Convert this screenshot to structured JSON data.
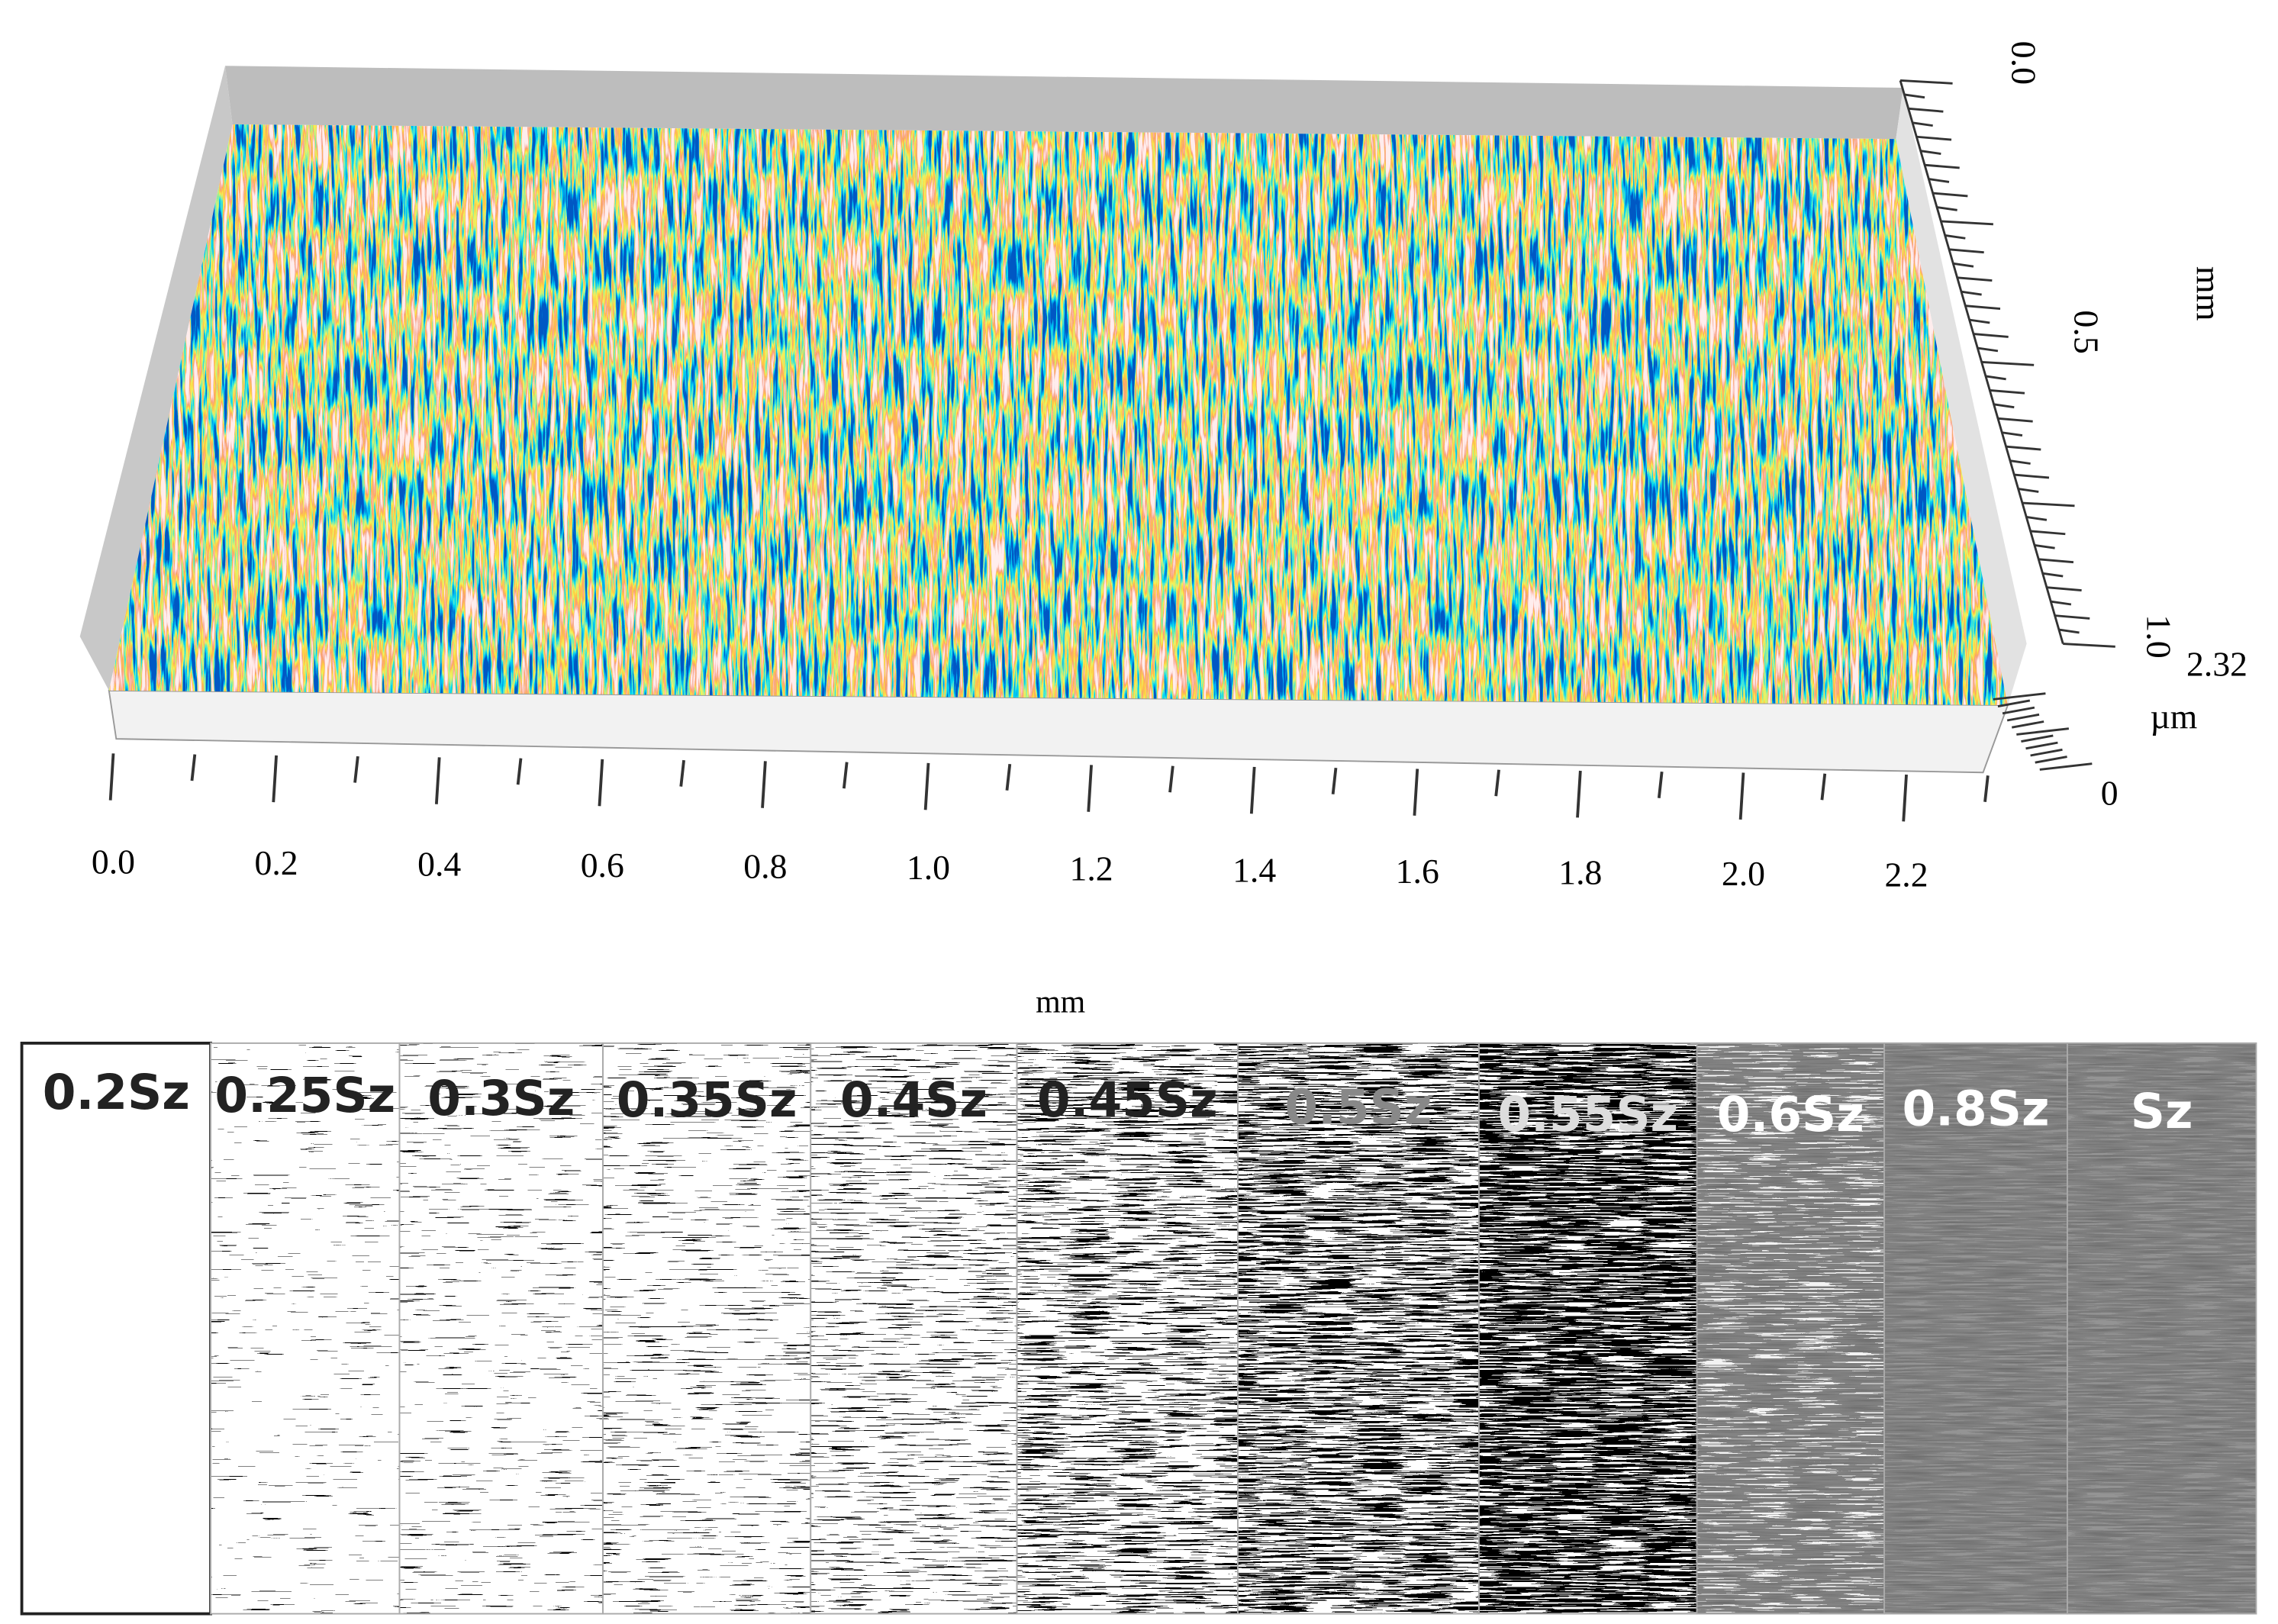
{
  "surface_plot": {
    "x_ticks": [
      "0.0",
      "0.2",
      "0.4",
      "0.6",
      "0.8",
      "1.0",
      "1.2",
      "1.4",
      "1.6",
      "1.8",
      "2.0",
      "2.2"
    ],
    "x_unit": "mm",
    "y_ticks": [
      "0.0",
      "0.5",
      "1.0"
    ],
    "y_unit": "mm",
    "z_top": "2.32",
    "z_unit": "µm",
    "z_bottom": "0"
  },
  "threshold_panels": {
    "labels": [
      "0.2Sz",
      "0.25Sz",
      "0.3Sz",
      "0.35Sz",
      "0.4Sz",
      "0.45Sz",
      "0.5Sz",
      "0.55Sz",
      "0.6Sz",
      "0.8Sz",
      "Sz"
    ]
  }
}
